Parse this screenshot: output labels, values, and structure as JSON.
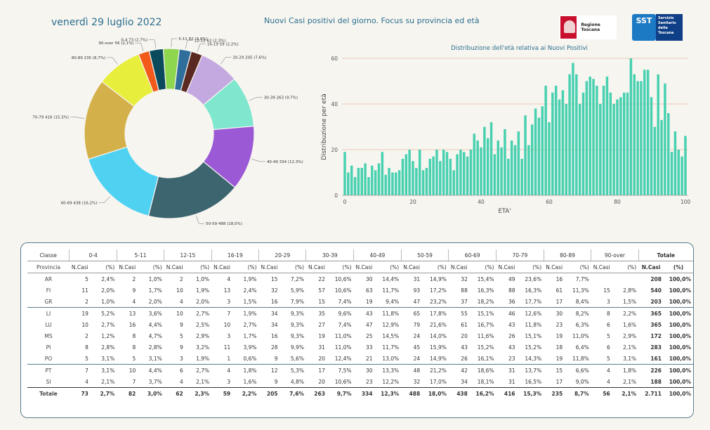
{
  "header": {
    "date": "venerdì 29 luglio 2022",
    "subtitle": "Nuovi Casi positivi del giorno. Focus su provincia ed età",
    "logo_rt_text": "Regione Toscana",
    "logo_sst_mark": "SST",
    "logo_sst_text": "Servizio Sanitario della Toscana"
  },
  "colors": {
    "pie": [
      "#0a4a5c",
      "#8fd64f",
      "#2f6e9a",
      "#5a2a22",
      "#c4a8e0",
      "#7ee7ce",
      "#9b59d6",
      "#3c6570",
      "#4fd2f2",
      "#d4b04a",
      "#e8ee3c",
      "#f25a1c"
    ],
    "bar": "#48d1b0",
    "grid": "#e8b7a6"
  },
  "chart_data": [
    {
      "type": "pie",
      "slices": [
        {
          "label": "0-4 73 (2,7%)",
          "value": 73
        },
        {
          "label": "5-11 82 (3,0%)",
          "value": 82
        },
        {
          "label": "12-15 62 (2,3%)",
          "value": 62
        },
        {
          "label": "16-19 59 (2,2%)",
          "value": 59
        },
        {
          "label": "20-29 205 (7,6%)",
          "value": 205
        },
        {
          "label": "30-39 263 (9,7%)",
          "value": 263
        },
        {
          "label": "40-49 334 (12,3%)",
          "value": 334
        },
        {
          "label": "50-59 488 (18,0%)",
          "value": 488
        },
        {
          "label": "60-69 438 (16,2%)",
          "value": 438
        },
        {
          "label": "70-79 416 (15,3%)",
          "value": 416
        },
        {
          "label": "80-89 235 (8,7%)",
          "value": 235
        },
        {
          "label": "90-over 56 (2,1%)",
          "value": 56
        }
      ]
    },
    {
      "type": "bar",
      "title": "Distribuzione dell'età relativa ai Nuovi Positivi",
      "xlabel": "ETA'",
      "ylabel": "Distribuzione per età",
      "xlim": [
        0,
        100
      ],
      "ylim": [
        0,
        60
      ],
      "xticks": [
        0,
        20,
        40,
        60,
        80,
        100
      ],
      "yticks": [
        0,
        20,
        40,
        60
      ],
      "x": [
        0,
        1,
        2,
        3,
        4,
        5,
        6,
        7,
        8,
        9,
        10,
        11,
        12,
        13,
        14,
        15,
        16,
        17,
        18,
        19,
        20,
        21,
        22,
        23,
        24,
        25,
        26,
        27,
        28,
        29,
        30,
        31,
        32,
        33,
        34,
        35,
        36,
        37,
        38,
        39,
        40,
        41,
        42,
        43,
        44,
        45,
        46,
        47,
        48,
        49,
        50,
        51,
        52,
        53,
        54,
        55,
        56,
        57,
        58,
        59,
        60,
        61,
        62,
        63,
        64,
        65,
        66,
        67,
        68,
        69,
        70,
        71,
        72,
        73,
        74,
        75,
        76,
        77,
        78,
        79,
        80,
        81,
        82,
        83,
        84,
        85,
        86,
        87,
        88,
        89,
        90,
        91,
        92,
        93,
        94,
        95,
        96,
        97,
        98,
        99,
        100
      ],
      "values": [
        19,
        10,
        13,
        8,
        12,
        12,
        14,
        8,
        13,
        11,
        14,
        19,
        9,
        12,
        10,
        10,
        11,
        16,
        18,
        20,
        15,
        12,
        20,
        11,
        12,
        16,
        17,
        20,
        15,
        20,
        19,
        16,
        11,
        18,
        20,
        19,
        17,
        20,
        27,
        24,
        21,
        30,
        25,
        32,
        18,
        24,
        21,
        29,
        16,
        24,
        22,
        28,
        16,
        35,
        22,
        31,
        38,
        34,
        39,
        48,
        32,
        45,
        48,
        42,
        46,
        40,
        53,
        58,
        53,
        40,
        45,
        50,
        52,
        51,
        48,
        40,
        48,
        52,
        45,
        40,
        42,
        43,
        45,
        45,
        60,
        53,
        50,
        50,
        55,
        55,
        43,
        30,
        53,
        33,
        49,
        36,
        19,
        28,
        20,
        17,
        26
      ]
    }
  ],
  "table": {
    "head_groups": [
      "Classe",
      "0-4",
      "5-11",
      "12-15",
      "16-19",
      "20-29",
      "30-39",
      "40-49",
      "50-59",
      "60-69",
      "70-79",
      "80-89",
      "90-over",
      "Totale"
    ],
    "head_sub": {
      "first": "Provincia",
      "n": "N.Casi",
      "p": "(%)"
    },
    "rows": [
      {
        "prov": "AR",
        "cells": [
          "5",
          "2,4%",
          "2",
          "1,0%",
          "2",
          "1,0%",
          "4",
          "1,9%",
          "15",
          "7,2%",
          "22",
          "10,6%",
          "30",
          "14,4%",
          "31",
          "14,9%",
          "32",
          "15,4%",
          "49",
          "23,6%",
          "16",
          "7,7%",
          "",
          "",
          "208",
          "100,0%"
        ]
      },
      {
        "prov": "FI",
        "cells": [
          "11",
          "2,0%",
          "9",
          "1,7%",
          "10",
          "1,9%",
          "13",
          "2,4%",
          "32",
          "5,9%",
          "57",
          "10,6%",
          "63",
          "11,7%",
          "93",
          "17,2%",
          "88",
          "16,3%",
          "88",
          "16,3%",
          "61",
          "11,3%",
          "15",
          "2,8%",
          "540",
          "100,0%"
        ]
      },
      {
        "prov": "GR",
        "cells": [
          "2",
          "1,0%",
          "4",
          "2,0%",
          "4",
          "2,0%",
          "3",
          "1,5%",
          "16",
          "7,9%",
          "15",
          "7,4%",
          "19",
          "9,4%",
          "47",
          "23,2%",
          "37",
          "18,2%",
          "36",
          "17,7%",
          "17",
          "8,4%",
          "3",
          "1,5%",
          "203",
          "100,0%"
        ]
      },
      {
        "prov": "LI",
        "cells": [
          "19",
          "5,2%",
          "13",
          "3,6%",
          "10",
          "2,7%",
          "7",
          "1,9%",
          "34",
          "9,3%",
          "35",
          "9,6%",
          "43",
          "11,8%",
          "65",
          "17,8%",
          "55",
          "15,1%",
          "46",
          "12,6%",
          "30",
          "8,2%",
          "8",
          "2,2%",
          "365",
          "100,0%"
        ]
      },
      {
        "prov": "LU",
        "cells": [
          "10",
          "2,7%",
          "16",
          "4,4%",
          "9",
          "2,5%",
          "10",
          "2,7%",
          "34",
          "9,3%",
          "27",
          "7,4%",
          "47",
          "12,9%",
          "79",
          "21,6%",
          "61",
          "16,7%",
          "43",
          "11,8%",
          "23",
          "6,3%",
          "6",
          "1,6%",
          "365",
          "100,0%"
        ]
      },
      {
        "prov": "MS",
        "cells": [
          "2",
          "1,2%",
          "8",
          "4,7%",
          "5",
          "2,9%",
          "3",
          "1,7%",
          "16",
          "9,3%",
          "19",
          "11,0%",
          "25",
          "14,5%",
          "24",
          "14,0%",
          "20",
          "11,6%",
          "26",
          "15,1%",
          "19",
          "11,0%",
          "5",
          "2,9%",
          "172",
          "100,0%"
        ]
      },
      {
        "prov": "PI",
        "cells": [
          "8",
          "2,8%",
          "8",
          "2,8%",
          "9",
          "3,2%",
          "11",
          "3,9%",
          "28",
          "9,9%",
          "31",
          "11,0%",
          "33",
          "11,7%",
          "45",
          "15,9%",
          "43",
          "15,2%",
          "43",
          "15,2%",
          "18",
          "6,4%",
          "6",
          "2,1%",
          "283",
          "100,0%"
        ]
      },
      {
        "prov": "PO",
        "cells": [
          "5",
          "3,1%",
          "5",
          "3,1%",
          "3",
          "1,9%",
          "1",
          "0,6%",
          "9",
          "5,6%",
          "20",
          "12,4%",
          "21",
          "13,0%",
          "24",
          "14,9%",
          "26",
          "16,1%",
          "23",
          "14,3%",
          "19",
          "11,8%",
          "5",
          "3,1%",
          "161",
          "100,0%"
        ]
      },
      {
        "prov": "PT",
        "cells": [
          "7",
          "3,1%",
          "10",
          "4,4%",
          "6",
          "2,7%",
          "4",
          "1,8%",
          "12",
          "5,3%",
          "17",
          "7,5%",
          "30",
          "13,3%",
          "48",
          "21,2%",
          "42",
          "18,6%",
          "31",
          "13,7%",
          "15",
          "6,6%",
          "4",
          "1,8%",
          "226",
          "100,0%"
        ]
      },
      {
        "prov": "SI",
        "cells": [
          "4",
          "2,1%",
          "7",
          "3,7%",
          "4",
          "2,1%",
          "3",
          "1,6%",
          "9",
          "4,8%",
          "20",
          "10,6%",
          "23",
          "12,2%",
          "32",
          "17,0%",
          "34",
          "18,1%",
          "31",
          "16,5%",
          "17",
          "9,0%",
          "4",
          "2,1%",
          "188",
          "100,0%"
        ]
      }
    ],
    "total": {
      "prov": "Totale",
      "cells": [
        "73",
        "2,7%",
        "82",
        "3,0%",
        "62",
        "2,3%",
        "59",
        "2,2%",
        "205",
        "7,6%",
        "263",
        "9,7%",
        "334",
        "12,3%",
        "488",
        "18,0%",
        "438",
        "16,2%",
        "416",
        "15,3%",
        "235",
        "8,7%",
        "56",
        "2,1%",
        "2.711",
        "100,0%"
      ]
    }
  }
}
